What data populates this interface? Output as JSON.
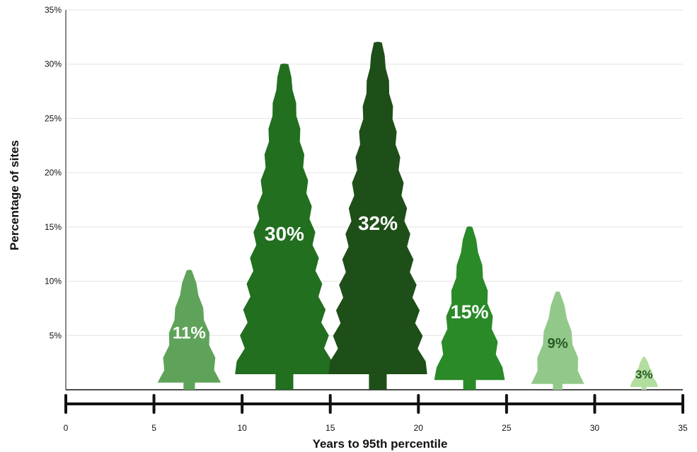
{
  "chart_data": {
    "type": "bar",
    "mark": "tree",
    "xlabel": "Years to 95th percentile",
    "ylabel": "Percentage of sites",
    "xlim": [
      0,
      35
    ],
    "ylim": [
      0,
      35
    ],
    "x_ticks": [
      "0",
      "5",
      "10",
      "15",
      "20",
      "25",
      "30",
      "35"
    ],
    "y_ticks": [
      "",
      "5%",
      "10%",
      "15%",
      "20%",
      "25%",
      "30%",
      "35%"
    ],
    "grid": "horizontal",
    "bars": [
      {
        "x_center": 7,
        "width": 3.6,
        "value": 11,
        "label": "11%",
        "color": "#5fa35a",
        "label_color": "#ffffff"
      },
      {
        "x_center": 12.4,
        "width": 5.6,
        "value": 30,
        "label": "30%",
        "color": "#216f1f",
        "label_color": "#ffffff"
      },
      {
        "x_center": 17.7,
        "width": 5.6,
        "value": 32,
        "label": "32%",
        "color": "#1f4f19",
        "label_color": "#ffffff"
      },
      {
        "x_center": 22.9,
        "width": 4.0,
        "value": 15,
        "label": "15%",
        "color": "#2a8a28",
        "label_color": "#ffffff"
      },
      {
        "x_center": 27.9,
        "width": 3.0,
        "value": 9,
        "label": "9%",
        "color": "#92c98a",
        "label_color": "#2a5a26"
      },
      {
        "x_center": 32.8,
        "width": 1.6,
        "value": 3,
        "label": "3%",
        "color": "#b2df9f",
        "label_color": "#2a5a26"
      }
    ]
  }
}
